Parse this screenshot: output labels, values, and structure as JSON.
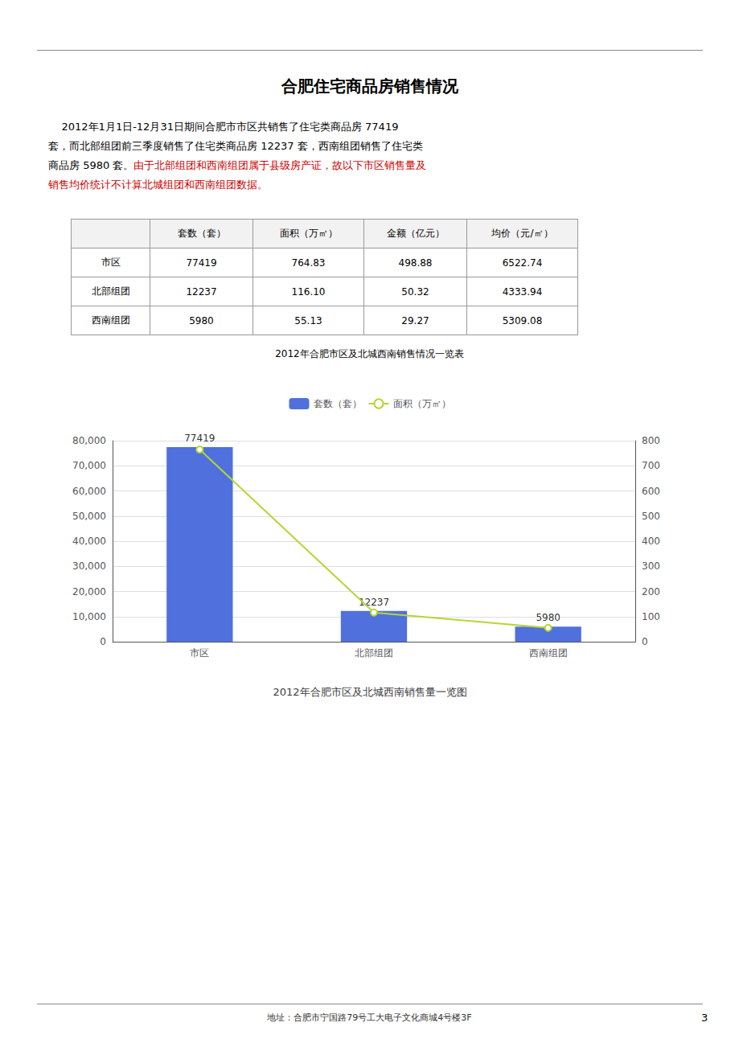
{
  "page": {
    "title": "合肥住宅商品房销售情况",
    "paragraphs": [
      [
        {
          "text": "    2012年1月1日-12月31日期间合肥市市区共销售了住宅类商品房 77419"
        }
      ],
      [
        {
          "text": "套，而北部组团前三季度销售了住宅类商品房 12237 套，西南组团销售了住宅类"
        }
      ],
      [
        {
          "text": "商品房 5980 套。"
        },
        {
          "text": "由于北部组团和西南组团属于县级房产证，故以下市区销售量及",
          "color": "#CC0000"
        }
      ],
      [
        {
          "text": "销售均价统计不计算北城组团和西南组团数据。",
          "color": "#CC0000"
        }
      ]
    ],
    "table": {
      "caption": "2012年合肥市区及北城西南销售情况一览表",
      "headers": [
        "套数（套）",
        "面积（万㎡）",
        "金额（亿元）",
        "均价（元/㎡）"
      ],
      "rows": [
        [
          "市区",
          "77419",
          "764.83",
          "498.88",
          "6522.74"
        ],
        [
          "北部组团",
          "12237",
          "116.10",
          "50.32",
          "4333.94"
        ],
        [
          "西南组团",
          "5980",
          "55.13",
          "29.27",
          "5309.08"
        ]
      ]
    },
    "footer": "地址：合肥市宁国路79号工大电子文化商城4号楼3F",
    "page_number": "3"
  },
  "chart_data": {
    "type": "bar",
    "title": "2012年合肥市区及北城西南销售量一览图",
    "categories": [
      "市区",
      "北部组团",
      "西南组团"
    ],
    "series": [
      {
        "name": "套数（套）",
        "type": "bar",
        "values": [
          77419,
          12237,
          5980
        ],
        "data_labels": true
      },
      {
        "name": "面积（万㎡）",
        "type": "line",
        "axis": "y2",
        "marker": "circle",
        "values": [
          764.83,
          116.1,
          55.13
        ]
      }
    ],
    "ylim": [
      0,
      80000
    ],
    "yticks": [
      0,
      10000,
      20000,
      30000,
      40000,
      50000,
      60000,
      70000,
      80000
    ],
    "y2lim": [
      0,
      800
    ],
    "y2ticks": [
      0,
      100,
      200,
      300,
      400,
      500,
      600,
      700,
      800
    ],
    "grid": true,
    "legend": "top"
  }
}
